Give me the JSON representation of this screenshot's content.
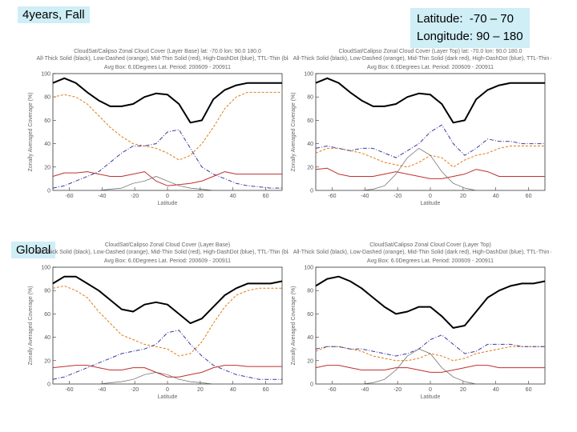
{
  "labels": {
    "top_left": "4years, Fall",
    "global": "Global",
    "region_lat": "Latitude:  -70 – 70",
    "region_lon": "Longitude: 90 – 180"
  },
  "chart_data": [
    {
      "type": "line",
      "title": "CloudSat/Calipso Zonal Cloud Cover (Layer Base)   lat: -70.0  lon: 90.0  180.0",
      "subtitle": "All-Thick Solid (black), Low-Dashed (orange), Mid-Thin Solid (red), High-DashDot (blue), TTL-Thin (black)",
      "period": "Avg Box: 6.0Degrees Lat. Period: 200609 - 200911",
      "xlabel": "Latitude",
      "ylabel": "Zonally Averaged Coverage (%)",
      "xlim": [
        -70,
        70
      ],
      "ylim": [
        0,
        100
      ],
      "xticks": [
        -60,
        -40,
        -20,
        0,
        20,
        40,
        60
      ],
      "xtick_labels": [
        "-60",
        "-40",
        "-20",
        "0",
        "20",
        "40",
        "60"
      ],
      "yticks": [
        0,
        20,
        40,
        60,
        80,
        100
      ],
      "ytick_labels": [
        "0",
        "20",
        "40",
        "60",
        "80",
        "100"
      ],
      "x": [
        -70,
        -63,
        -56,
        -49,
        -42,
        -35,
        -28,
        -21,
        -14,
        -7,
        0,
        7,
        14,
        21,
        28,
        35,
        42,
        49,
        56,
        63,
        70
      ],
      "series": [
        {
          "color": "#000000",
          "dash": "",
          "width": 2,
          "values": [
            92,
            96,
            92,
            84,
            77,
            72,
            72,
            74,
            80,
            83,
            82,
            74,
            58,
            60,
            78,
            86,
            90,
            92,
            92,
            92,
            92
          ]
        },
        {
          "color": "#e07b10",
          "dash": "3,2",
          "width": 1,
          "values": [
            80,
            82,
            80,
            74,
            64,
            54,
            46,
            40,
            38,
            36,
            32,
            26,
            30,
            40,
            54,
            70,
            80,
            84,
            84,
            84,
            84
          ]
        },
        {
          "color": "#3a3aa0",
          "dash": "5,2,1,2",
          "width": 1,
          "values": [
            2,
            4,
            8,
            12,
            16,
            24,
            32,
            38,
            38,
            40,
            50,
            52,
            36,
            20,
            14,
            10,
            6,
            4,
            3,
            2,
            2
          ]
        },
        {
          "color": "#c03030",
          "dash": "",
          "width": 1,
          "values": [
            12,
            15,
            15,
            16,
            14,
            12,
            12,
            14,
            16,
            8,
            4,
            5,
            6,
            8,
            12,
            16,
            14,
            14,
            14,
            14,
            14
          ]
        },
        {
          "color": "#666666",
          "dash": "",
          "width": 0.7,
          "values": [
            0,
            0,
            0,
            0,
            0,
            1,
            2,
            6,
            8,
            12,
            8,
            4,
            2,
            1,
            0,
            0,
            0,
            0,
            0,
            0,
            0
          ]
        }
      ]
    },
    {
      "type": "line",
      "title": "CloudSat/Calipso Zonal Cloud Cover (Layer Top)   lat: -70.0  lon: 90.0  180.0",
      "subtitle": "All-Thick Solid (black), Low-Dashed (orange), Mid-Thin Solid (dark red), High-DashDot (blue), TTL-Thin (black)",
      "period": "Avg Box: 6.0Degrees Lat. Period: 200609 - 200911",
      "xlabel": "Latitude",
      "ylabel": "Zonally Averaged Coverage (%)",
      "xlim": [
        -70,
        70
      ],
      "ylim": [
        0,
        100
      ],
      "xticks": [
        -60,
        -40,
        -20,
        0,
        20,
        40,
        60
      ],
      "xtick_labels": [
        "-60",
        "-40",
        "-20",
        "0",
        "20",
        "40",
        "60"
      ],
      "yticks": [
        0,
        20,
        40,
        60,
        80,
        100
      ],
      "ytick_labels": [
        "0",
        "20",
        "40",
        "60",
        "80",
        "100"
      ],
      "x": [
        -70,
        -63,
        -56,
        -49,
        -42,
        -35,
        -28,
        -21,
        -14,
        -7,
        0,
        7,
        14,
        21,
        28,
        35,
        42,
        49,
        56,
        63,
        70
      ],
      "series": [
        {
          "color": "#000000",
          "dash": "",
          "width": 2,
          "values": [
            92,
            96,
            92,
            84,
            77,
            72,
            72,
            74,
            80,
            83,
            82,
            74,
            58,
            60,
            78,
            86,
            90,
            92,
            92,
            92,
            92
          ]
        },
        {
          "color": "#e07b10",
          "dash": "3,2",
          "width": 1,
          "values": [
            32,
            36,
            36,
            34,
            32,
            28,
            24,
            22,
            20,
            24,
            30,
            28,
            20,
            26,
            30,
            32,
            36,
            38,
            38,
            38,
            38
          ]
        },
        {
          "color": "#3a3aa0",
          "dash": "5,2,1,2",
          "width": 1,
          "values": [
            36,
            38,
            36,
            34,
            36,
            36,
            32,
            28,
            34,
            40,
            50,
            56,
            40,
            30,
            36,
            44,
            42,
            42,
            40,
            40,
            40
          ]
        },
        {
          "color": "#c03030",
          "dash": "",
          "width": 1,
          "values": [
            18,
            19,
            14,
            12,
            12,
            12,
            14,
            16,
            14,
            12,
            10,
            10,
            12,
            14,
            18,
            16,
            12,
            12,
            12,
            12,
            12
          ]
        },
        {
          "color": "#666666",
          "dash": "",
          "width": 0.7,
          "values": [
            0,
            0,
            0,
            0,
            0,
            1,
            4,
            14,
            28,
            36,
            30,
            16,
            6,
            2,
            0,
            0,
            0,
            0,
            0,
            0,
            0
          ]
        }
      ]
    },
    {
      "type": "line",
      "title": "CloudSat/Calipso Zonal Cloud Cover (Layer Base)",
      "subtitle": "All-Thick Solid (black), Low-Dashed (orange), Mid-Thin Solid (red), High-DashDot (blue), TTL-Thin (black)",
      "period": "Avg Box: 6.0Degrees Lat. Period: 200609 - 200911",
      "xlabel": "Latitude",
      "ylabel": "Zonally Averaged Coverage (%)",
      "xlim": [
        -70,
        70
      ],
      "ylim": [
        0,
        100
      ],
      "xticks": [
        -60,
        -40,
        -20,
        0,
        20,
        40,
        60
      ],
      "xtick_labels": [
        "-60",
        "-40",
        "-20",
        "0",
        "20",
        "40",
        "60"
      ],
      "yticks": [
        0,
        20,
        40,
        60,
        80,
        100
      ],
      "ytick_labels": [
        "0",
        "20",
        "40",
        "60",
        "80",
        "100"
      ],
      "x": [
        -70,
        -63,
        -56,
        -49,
        -42,
        -35,
        -28,
        -21,
        -14,
        -7,
        0,
        7,
        14,
        21,
        28,
        35,
        42,
        49,
        56,
        63,
        70
      ],
      "series": [
        {
          "color": "#000000",
          "dash": "",
          "width": 2,
          "values": [
            86,
            92,
            92,
            86,
            80,
            72,
            64,
            62,
            68,
            70,
            68,
            60,
            52,
            56,
            66,
            76,
            82,
            86,
            86,
            86,
            88
          ]
        },
        {
          "color": "#e07b10",
          "dash": "3,2",
          "width": 1,
          "values": [
            82,
            84,
            80,
            74,
            62,
            52,
            42,
            38,
            34,
            32,
            30,
            24,
            26,
            36,
            52,
            66,
            76,
            80,
            82,
            82,
            82
          ]
        },
        {
          "color": "#3a3aa0",
          "dash": "5,2,1,2",
          "width": 1,
          "values": [
            4,
            6,
            10,
            14,
            18,
            22,
            26,
            28,
            30,
            34,
            44,
            46,
            34,
            24,
            16,
            12,
            8,
            6,
            4,
            4,
            4
          ]
        },
        {
          "color": "#c03030",
          "dash": "",
          "width": 1,
          "values": [
            14,
            15,
            16,
            16,
            14,
            12,
            12,
            14,
            14,
            10,
            6,
            6,
            8,
            10,
            14,
            16,
            16,
            15,
            15,
            15,
            15
          ]
        },
        {
          "color": "#666666",
          "dash": "",
          "width": 0.7,
          "values": [
            0,
            0,
            0,
            0,
            0,
            1,
            2,
            4,
            8,
            10,
            8,
            4,
            2,
            1,
            0,
            0,
            0,
            0,
            0,
            0,
            0
          ]
        }
      ]
    },
    {
      "type": "line",
      "title": "CloudSat/Calipso Zonal Cloud Cover (Layer Top)",
      "subtitle": "All-Thick Solid (black), Low-Dashed (orange), Mid-Thin Solid (dark red), High-DashDot (blue), TTL-Thin (black)",
      "period": "Avg Box: 6.0Degrees Lat. Period: 200609 - 200911",
      "xlabel": "Latitude",
      "ylabel": "Zonally Averaged Coverage (%)",
      "xlim": [
        -70,
        70
      ],
      "ylim": [
        0,
        100
      ],
      "xticks": [
        -60,
        -40,
        -20,
        0,
        20,
        40,
        60
      ],
      "xtick_labels": [
        "-60",
        "-40",
        "-20",
        "0",
        "20",
        "40",
        "60"
      ],
      "yticks": [
        0,
        20,
        40,
        60,
        80,
        100
      ],
      "ytick_labels": [
        "0",
        "20",
        "40",
        "60",
        "80",
        "100"
      ],
      "x": [
        -70,
        -63,
        -56,
        -49,
        -42,
        -35,
        -28,
        -21,
        -14,
        -7,
        0,
        7,
        14,
        21,
        28,
        35,
        42,
        49,
        56,
        63,
        70
      ],
      "series": [
        {
          "color": "#000000",
          "dash": "",
          "width": 2,
          "values": [
            84,
            90,
            92,
            88,
            82,
            74,
            66,
            60,
            62,
            66,
            66,
            58,
            48,
            50,
            62,
            74,
            80,
            84,
            86,
            86,
            88
          ]
        },
        {
          "color": "#e07b10",
          "dash": "3,2",
          "width": 1,
          "values": [
            28,
            32,
            32,
            30,
            28,
            24,
            22,
            20,
            20,
            22,
            26,
            24,
            20,
            22,
            26,
            28,
            30,
            32,
            32,
            32,
            32
          ]
        },
        {
          "color": "#3a3aa0",
          "dash": "5,2,1,2",
          "width": 1,
          "values": [
            30,
            32,
            32,
            30,
            30,
            28,
            26,
            24,
            26,
            30,
            38,
            42,
            34,
            26,
            28,
            34,
            34,
            34,
            32,
            32,
            32
          ]
        },
        {
          "color": "#c03030",
          "dash": "",
          "width": 1,
          "values": [
            14,
            16,
            16,
            14,
            12,
            12,
            12,
            14,
            14,
            12,
            10,
            10,
            12,
            14,
            16,
            16,
            14,
            14,
            14,
            14,
            14
          ]
        },
        {
          "color": "#666666",
          "dash": "",
          "width": 0.7,
          "values": [
            0,
            0,
            0,
            0,
            0,
            1,
            4,
            12,
            24,
            30,
            26,
            14,
            6,
            2,
            0,
            0,
            0,
            0,
            0,
            0,
            0
          ]
        }
      ]
    }
  ]
}
